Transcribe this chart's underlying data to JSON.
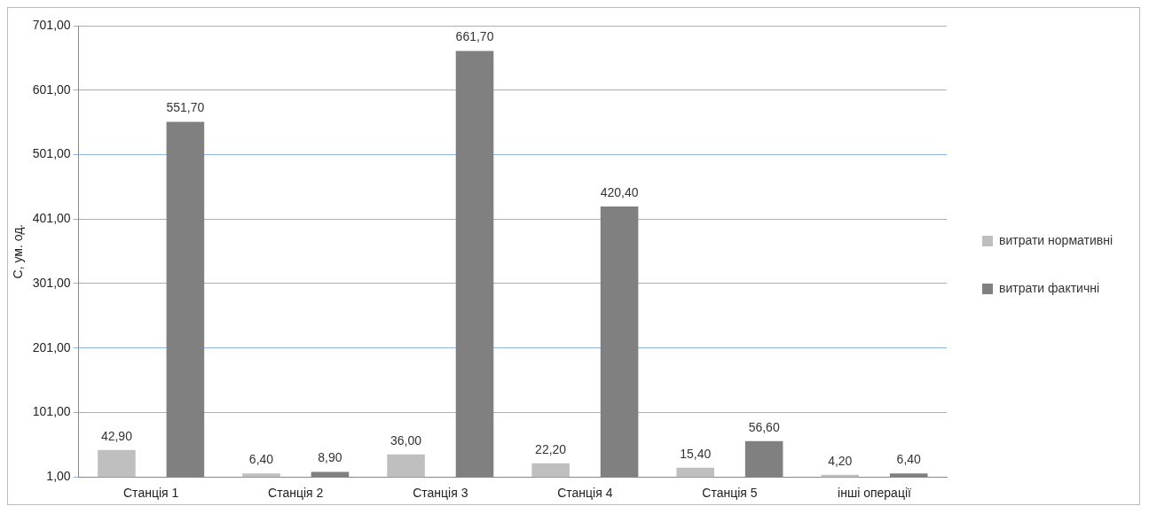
{
  "chart_data": {
    "type": "bar",
    "ylabel": "С, ум. од.",
    "categories": [
      "Станція 1",
      "Станція 2",
      "Станція 3",
      "Станція 4",
      "Станція 5",
      "інші операції"
    ],
    "series": [
      {
        "name": "витрати нормативні",
        "color": "#bfbfbf",
        "values": [
          42.9,
          6.4,
          36.0,
          22.2,
          15.4,
          4.2
        ],
        "value_labels": [
          "42,90",
          "6,40",
          "36,00",
          "22,20",
          "15,40",
          "4,20"
        ]
      },
      {
        "name": "витрати фактичні",
        "color": "#808080",
        "values": [
          551.7,
          8.9,
          661.7,
          420.4,
          56.6,
          6.4
        ],
        "value_labels": [
          "551,70",
          "8,90",
          "661,70",
          "420,40",
          "56,60",
          "6,40"
        ]
      }
    ],
    "ylim": [
      1,
      701
    ],
    "yticks": [
      {
        "value": 1,
        "label": "1,00"
      },
      {
        "value": 101,
        "label": "101,00"
      },
      {
        "value": 201,
        "label": "201,00"
      },
      {
        "value": 301,
        "label": "301,00"
      },
      {
        "value": 401,
        "label": "401,00"
      },
      {
        "value": 501,
        "label": "501,00"
      },
      {
        "value": 601,
        "label": "601,00"
      },
      {
        "value": 701,
        "label": "701,00"
      }
    ],
    "grid": "y",
    "legend": "right"
  }
}
